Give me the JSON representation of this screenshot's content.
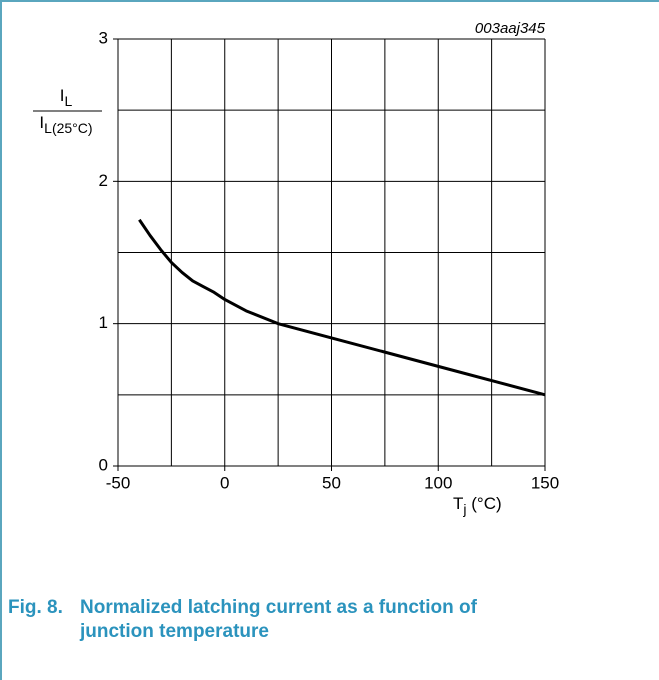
{
  "chart_data": {
    "type": "line",
    "code": "003aaj345",
    "y_label": {
      "numerator": [
        "I",
        "L"
      ],
      "denominator": [
        "I",
        "L(25°C)"
      ]
    },
    "x_label": [
      "T",
      "j",
      " (°C)"
    ],
    "x": [
      -40,
      -35,
      -30,
      -25,
      -20,
      -15,
      -10,
      -5,
      0,
      10,
      25,
      50,
      75,
      100,
      125,
      150
    ],
    "values": [
      1.73,
      1.62,
      1.52,
      1.43,
      1.36,
      1.3,
      1.26,
      1.22,
      1.17,
      1.09,
      1.0,
      0.9,
      0.8,
      0.7,
      0.6,
      0.5
    ],
    "color": "#000000",
    "xlim": [
      -50,
      150
    ],
    "xticks": [
      -50,
      0,
      50,
      100,
      150
    ],
    "xminor": [
      -25,
      25,
      75,
      125
    ],
    "ylim": [
      0,
      3
    ],
    "yticks": [
      0,
      1,
      2,
      3
    ],
    "yminor": [
      0.5,
      1.5,
      2.5
    ],
    "grid": true
  },
  "caption": {
    "label": "Fig. 8.",
    "text": "Normalized latching current as a function of junction temperature"
  }
}
